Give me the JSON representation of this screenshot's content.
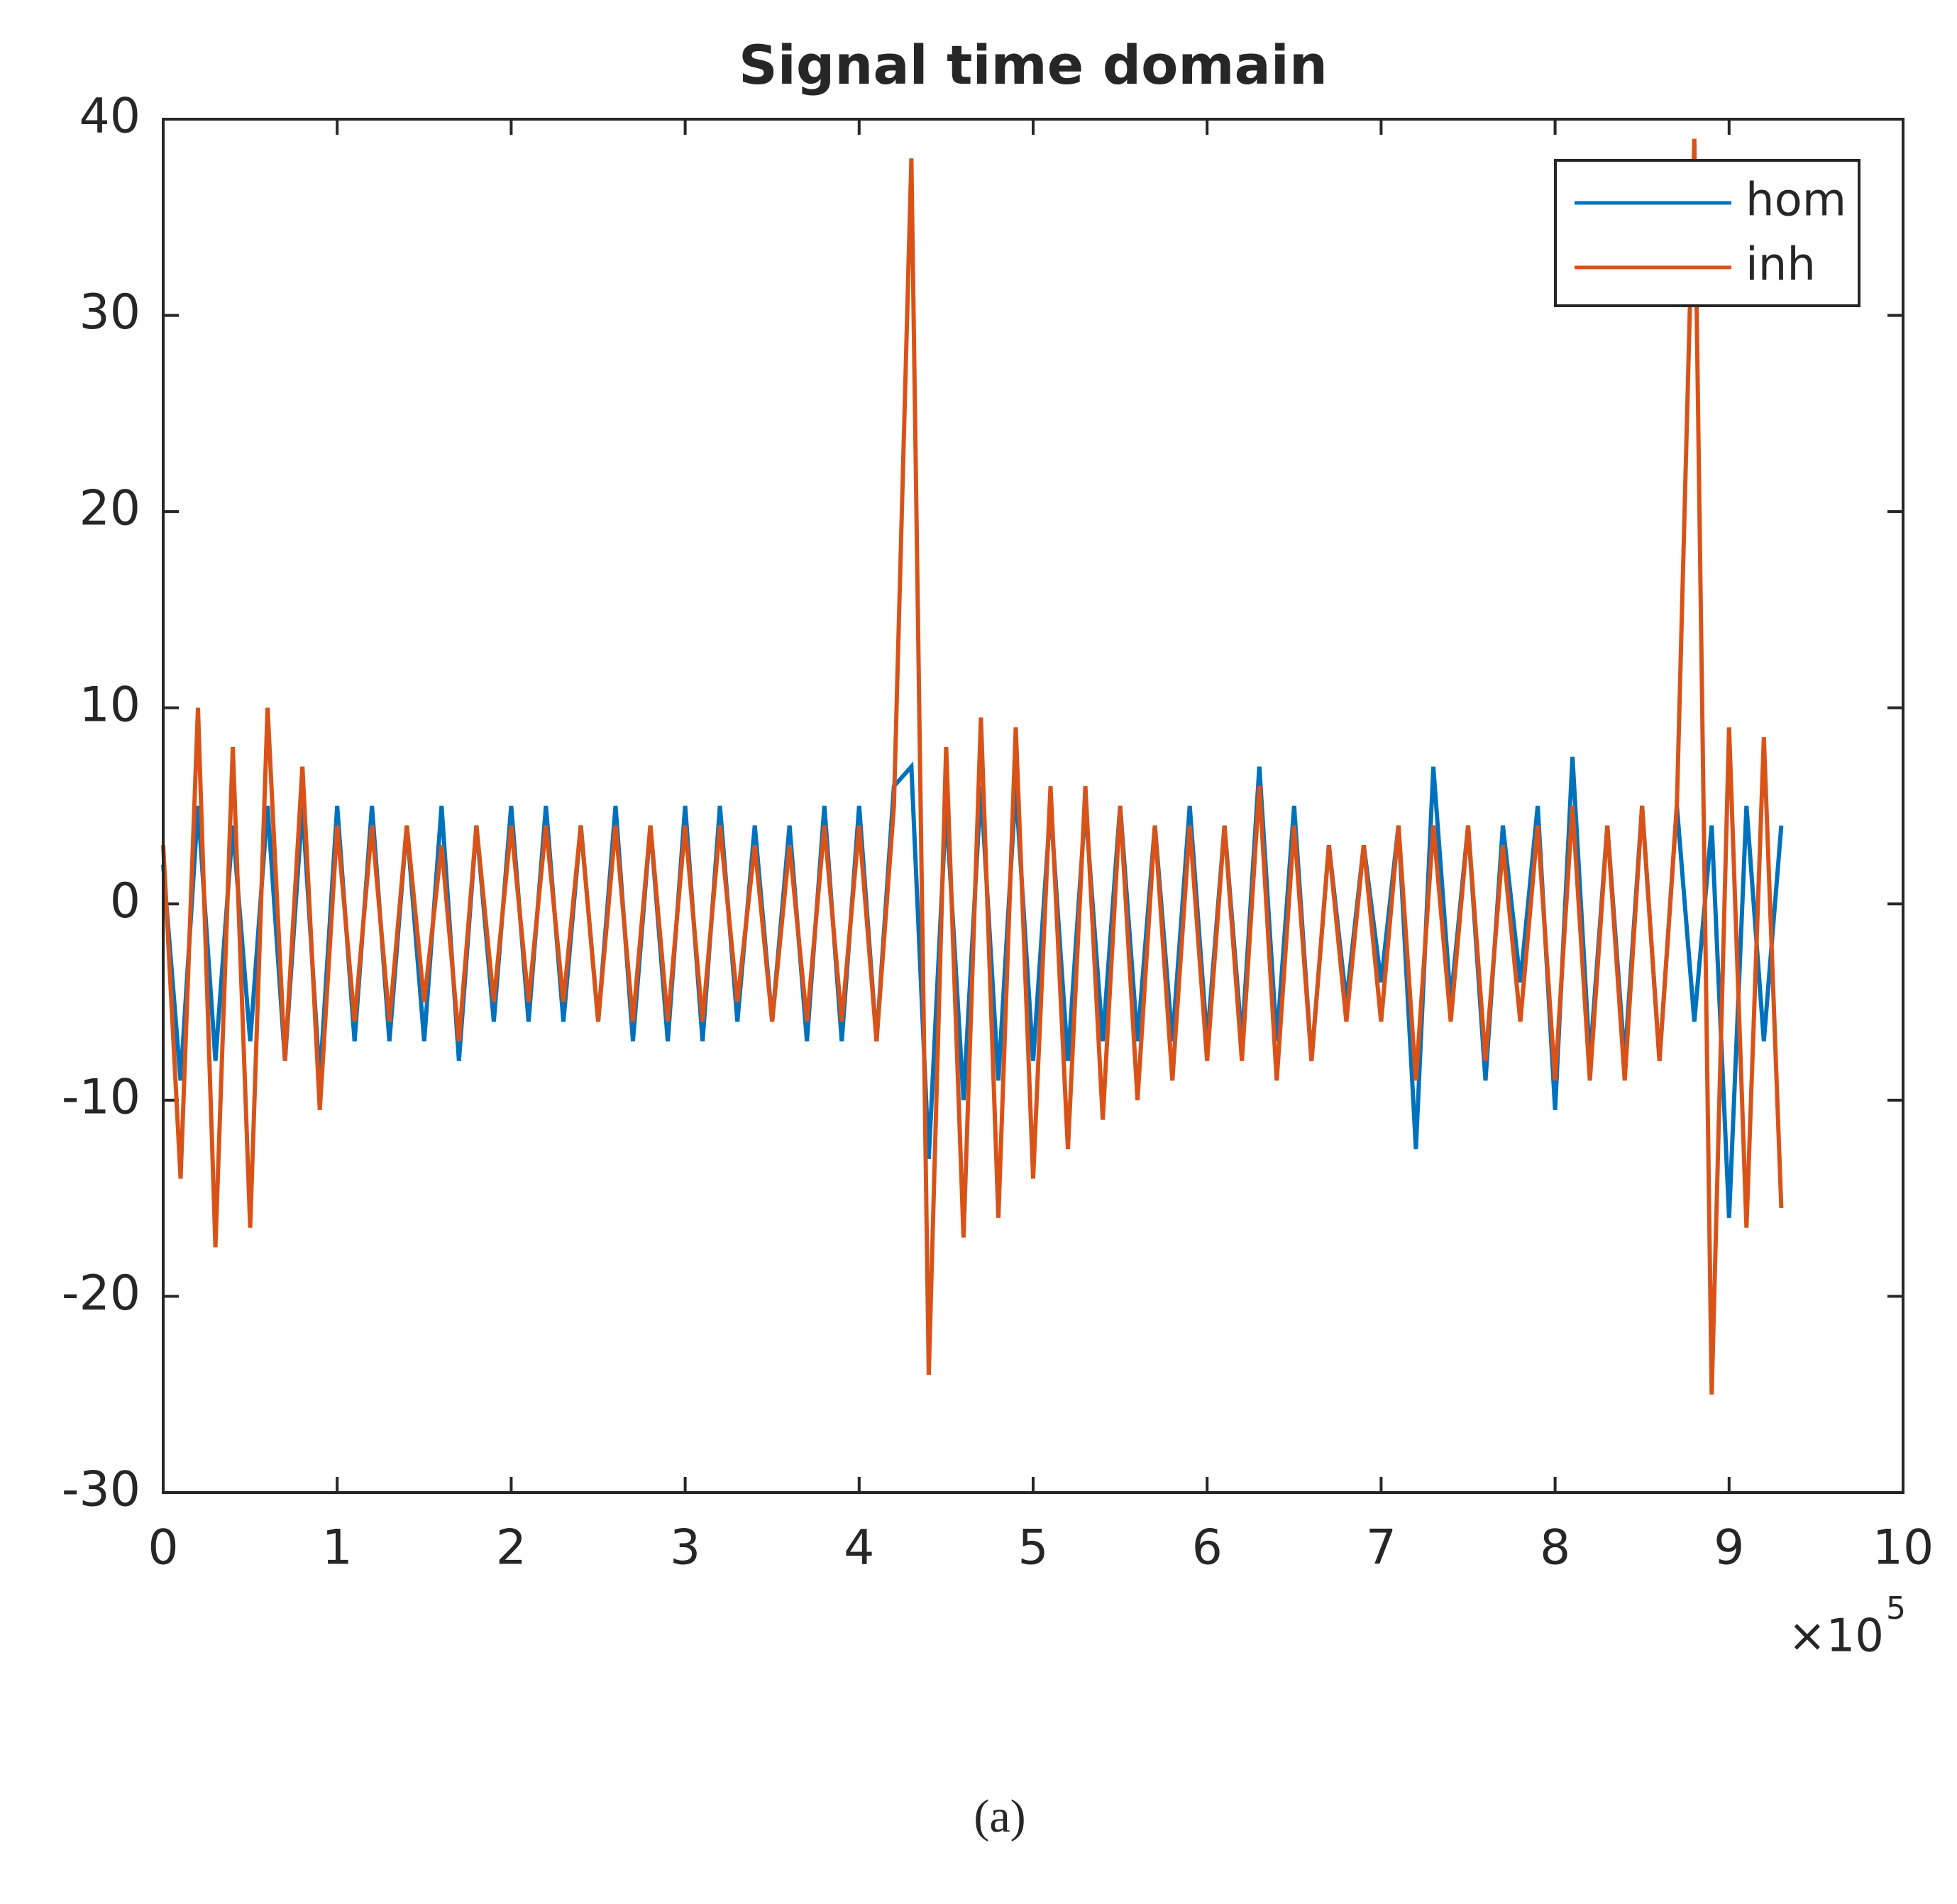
{
  "chart_data": {
    "type": "line",
    "title": "Signal time domain",
    "x": [
      0,
      0.1,
      0.2,
      0.3,
      0.4,
      0.5,
      0.6,
      0.7,
      0.8,
      0.9,
      1,
      1.1,
      1.2,
      1.3,
      1.4,
      1.5,
      1.6,
      1.7,
      1.8,
      1.9,
      2,
      2.1,
      2.2,
      2.3,
      2.4,
      2.5,
      2.6,
      2.7,
      2.8,
      2.9,
      3,
      3.1,
      3.2,
      3.3,
      3.4,
      3.5,
      3.6,
      3.7,
      3.8,
      3.9,
      4,
      4.1,
      4.2,
      4.3,
      4.4,
      4.5,
      4.6,
      4.7,
      4.8,
      4.9,
      5,
      5.1,
      5.2,
      5.3,
      5.4,
      5.5,
      5.6,
      5.7,
      5.8,
      5.9,
      6,
      6.1,
      6.2,
      6.3,
      6.4,
      6.5,
      6.6,
      6.7,
      6.8,
      6.9,
      7,
      7.1,
      7.2,
      7.3,
      7.4,
      7.5,
      7.6,
      7.7,
      7.8,
      7.9,
      8,
      8.1,
      8.2,
      8.3,
      8.4,
      8.5,
      8.6,
      8.7,
      8.8,
      8.9,
      9,
      9.1,
      9.2,
      9.3
    ],
    "series": [
      {
        "name": "hom",
        "color": "#0072bd",
        "values": [
          2,
          -9,
          5,
          -8,
          4,
          -7,
          5,
          -8,
          5,
          -9,
          5,
          -7,
          5,
          -7,
          4,
          -7,
          5,
          -8,
          4,
          -6,
          5,
          -6,
          5,
          -6,
          4,
          -6,
          5,
          -7,
          4,
          -7,
          5,
          -7,
          5,
          -6,
          4,
          -6,
          4,
          -7,
          5,
          -7,
          5,
          -7,
          6,
          7,
          -13,
          5,
          -10,
          6,
          -9,
          6,
          -8,
          5,
          -8,
          5,
          -7,
          5,
          -7,
          4,
          -7,
          5,
          -7,
          4,
          -7,
          7,
          -7,
          5,
          -8,
          3,
          -5,
          3,
          -4,
          4,
          -12.5,
          7,
          -5,
          4,
          -9,
          4,
          -4,
          5,
          -10.5,
          7.5,
          -8,
          4,
          -8,
          5,
          -8,
          5,
          -6,
          4,
          -16,
          5,
          -7,
          4
        ]
      },
      {
        "name": "inh",
        "color": "#d95319",
        "values": [
          3,
          -14,
          10,
          -17.5,
          8,
          -16.5,
          10,
          -8,
          7,
          -10.5,
          4,
          -6,
          4,
          -6,
          4,
          -5,
          3,
          -7,
          4,
          -5,
          4,
          -5,
          4,
          -5,
          4,
          -6,
          4,
          -6,
          4,
          -6,
          4,
          -6,
          4,
          -5,
          3,
          -6,
          3,
          -6,
          4,
          -6,
          4,
          -7,
          5,
          38,
          -24,
          8,
          -17,
          9.5,
          -16,
          9,
          -14,
          6,
          -12.5,
          6,
          -11,
          5,
          -10,
          4,
          -9,
          4,
          -8,
          4,
          -8,
          6,
          -9,
          4,
          -8,
          3,
          -6,
          3,
          -6,
          4,
          -9,
          4,
          -6,
          4,
          -8,
          3,
          -6,
          4,
          -9,
          5,
          -9,
          4,
          -9,
          5,
          -8,
          5,
          39,
          -25,
          9,
          -16.5,
          8.5,
          -15.5
        ]
      }
    ],
    "xlim": [
      0,
      10
    ],
    "xticks": [
      0,
      1,
      2,
      3,
      4,
      5,
      6,
      7,
      8,
      9,
      10
    ],
    "ylim": [
      -30,
      40
    ],
    "yticks": [
      -30,
      -20,
      -10,
      0,
      10,
      20,
      30,
      40
    ],
    "x_multiplier_base": "×10",
    "x_multiplier_exponent": "5",
    "legend": "northeast",
    "grid": false,
    "caption": "(a)"
  }
}
